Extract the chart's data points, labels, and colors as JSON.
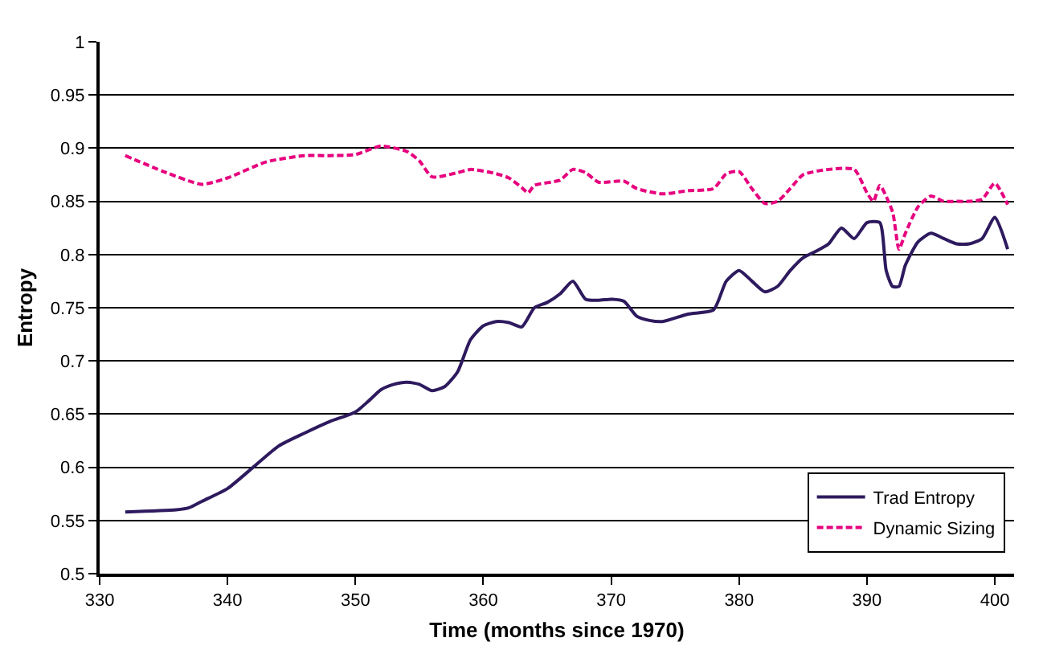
{
  "chart_data": {
    "type": "line",
    "xlabel": "Time (months since 1970)",
    "ylabel": "Entropy",
    "xlim": [
      330,
      401.5
    ],
    "xticks": [
      330,
      340,
      350,
      360,
      370,
      380,
      390,
      400
    ],
    "ylim": [
      0.5,
      1
    ],
    "yticks": [
      0.5,
      0.55,
      0.6,
      0.65,
      0.7,
      0.75,
      0.8,
      0.85,
      0.9,
      0.95,
      1
    ],
    "grid": "y",
    "legend": "bottom right",
    "marker": "none",
    "series": [
      {
        "name": "Trad Entropy",
        "color": "#2e1a5e",
        "line_style": "solid",
        "x": [
          332,
          336,
          337,
          338,
          340,
          342,
          344,
          346,
          348,
          350,
          351,
          352,
          353,
          354,
          355,
          356,
          357,
          358,
          359,
          360,
          361,
          362,
          363,
          364,
          365,
          366,
          367,
          368,
          369,
          370,
          371,
          372,
          373,
          374,
          376,
          378,
          379,
          380,
          381,
          382,
          383,
          384,
          385,
          386,
          387,
          388,
          389,
          390,
          391,
          391.5,
          392,
          392.5,
          393,
          394,
          395,
          396,
          397,
          398,
          399,
          400,
          401
        ],
        "values": [
          0.558,
          0.56,
          0.562,
          0.568,
          0.58,
          0.6,
          0.62,
          0.632,
          0.643,
          0.652,
          0.662,
          0.673,
          0.678,
          0.68,
          0.678,
          0.672,
          0.676,
          0.69,
          0.72,
          0.733,
          0.737,
          0.736,
          0.732,
          0.75,
          0.755,
          0.763,
          0.775,
          0.758,
          0.757,
          0.758,
          0.756,
          0.742,
          0.738,
          0.737,
          0.744,
          0.748,
          0.775,
          0.785,
          0.775,
          0.765,
          0.77,
          0.785,
          0.797,
          0.803,
          0.81,
          0.825,
          0.815,
          0.83,
          0.83,
          0.785,
          0.77,
          0.77,
          0.79,
          0.812,
          0.82,
          0.815,
          0.81,
          0.81,
          0.815,
          0.835,
          0.805
        ]
      },
      {
        "name": "Dynamic Sizing",
        "color": "#e6007e",
        "line_style": "dashed",
        "x": [
          332,
          335,
          338,
          340,
          343,
          346,
          348,
          350,
          352,
          354,
          355,
          356,
          358,
          359,
          361,
          362,
          363,
          363.5,
          364,
          366,
          367,
          368,
          369,
          371,
          372,
          374,
          376,
          378,
          379,
          380,
          381,
          382,
          383,
          384,
          385,
          387,
          389,
          390,
          390.5,
          391,
          392,
          392.5,
          393,
          394,
          395,
          396,
          397,
          398,
          399,
          400,
          401
        ],
        "values": [
          0.893,
          0.878,
          0.866,
          0.872,
          0.887,
          0.893,
          0.893,
          0.894,
          0.902,
          0.897,
          0.888,
          0.873,
          0.877,
          0.88,
          0.876,
          0.872,
          0.863,
          0.858,
          0.865,
          0.87,
          0.88,
          0.877,
          0.868,
          0.869,
          0.862,
          0.857,
          0.86,
          0.862,
          0.876,
          0.878,
          0.862,
          0.848,
          0.85,
          0.862,
          0.875,
          0.88,
          0.88,
          0.858,
          0.85,
          0.865,
          0.84,
          0.805,
          0.82,
          0.845,
          0.855,
          0.85,
          0.85,
          0.85,
          0.852,
          0.867,
          0.847
        ]
      }
    ]
  }
}
